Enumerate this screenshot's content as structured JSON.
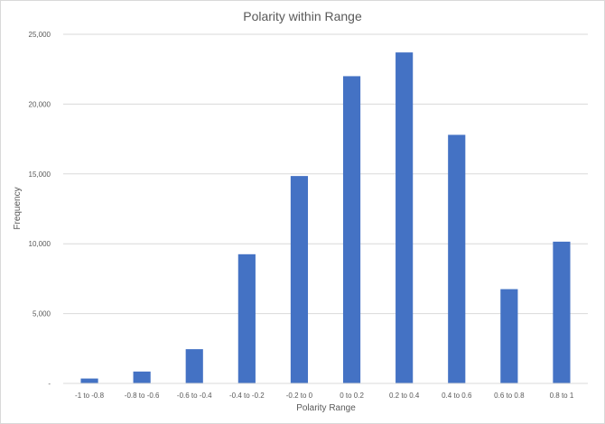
{
  "chart_data": {
    "type": "bar",
    "title": "Polarity within Range",
    "xlabel": "Polarity Range",
    "ylabel": "Frequency",
    "categories": [
      "-1 to -0.8",
      "-0.8 to -0.6",
      "-0.6 to -0.4",
      "-0.4 to -0.2",
      "-0.2 to 0",
      "0 to 0.2",
      "0.2 to 0.4",
      "0.4 to 0.6",
      "0.6 to 0.8",
      "0.8 to 1"
    ],
    "values": [
      350,
      850,
      2450,
      9250,
      14850,
      22000,
      23700,
      17800,
      6750,
      10150
    ],
    "ylim": [
      0,
      25000
    ],
    "yticks": [
      0,
      5000,
      10000,
      15000,
      20000,
      25000
    ],
    "ytick_labels": [
      "-",
      "5,000",
      "10,000",
      "15,000",
      "20,000",
      "25,000"
    ],
    "bar_color": "#4472c4",
    "grid": true,
    "legend": "none"
  }
}
